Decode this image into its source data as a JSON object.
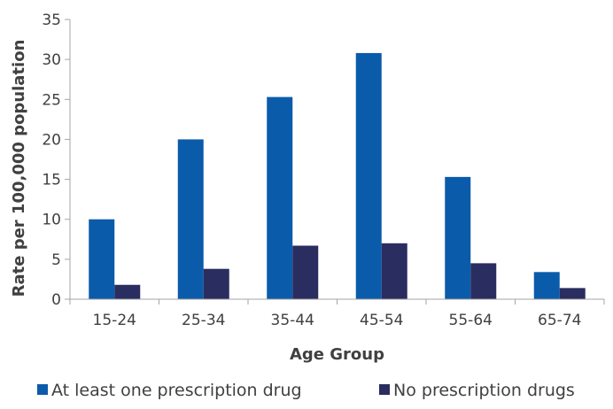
{
  "chart_data": {
    "type": "bar",
    "title": "",
    "xlabel": "Age Group",
    "ylabel": "Rate per 100,000 population",
    "categories": [
      "15-24",
      "25-34",
      "35-44",
      "45-54",
      "55-64",
      "65-74"
    ],
    "series": [
      {
        "name": "At least one prescription drug",
        "color": "#0b5bab",
        "values": [
          10.0,
          20.0,
          25.3,
          30.8,
          15.3,
          3.4
        ]
      },
      {
        "name": "No prescription drugs",
        "color": "#2a2d5f",
        "values": [
          1.8,
          3.8,
          6.7,
          7.0,
          4.5,
          1.4
        ]
      }
    ],
    "ylim": [
      0,
      35
    ],
    "yticks": [
      "0",
      "5",
      "10",
      "15",
      "20",
      "25",
      "30",
      "35"
    ],
    "grid": false,
    "legend_position": "bottom"
  }
}
